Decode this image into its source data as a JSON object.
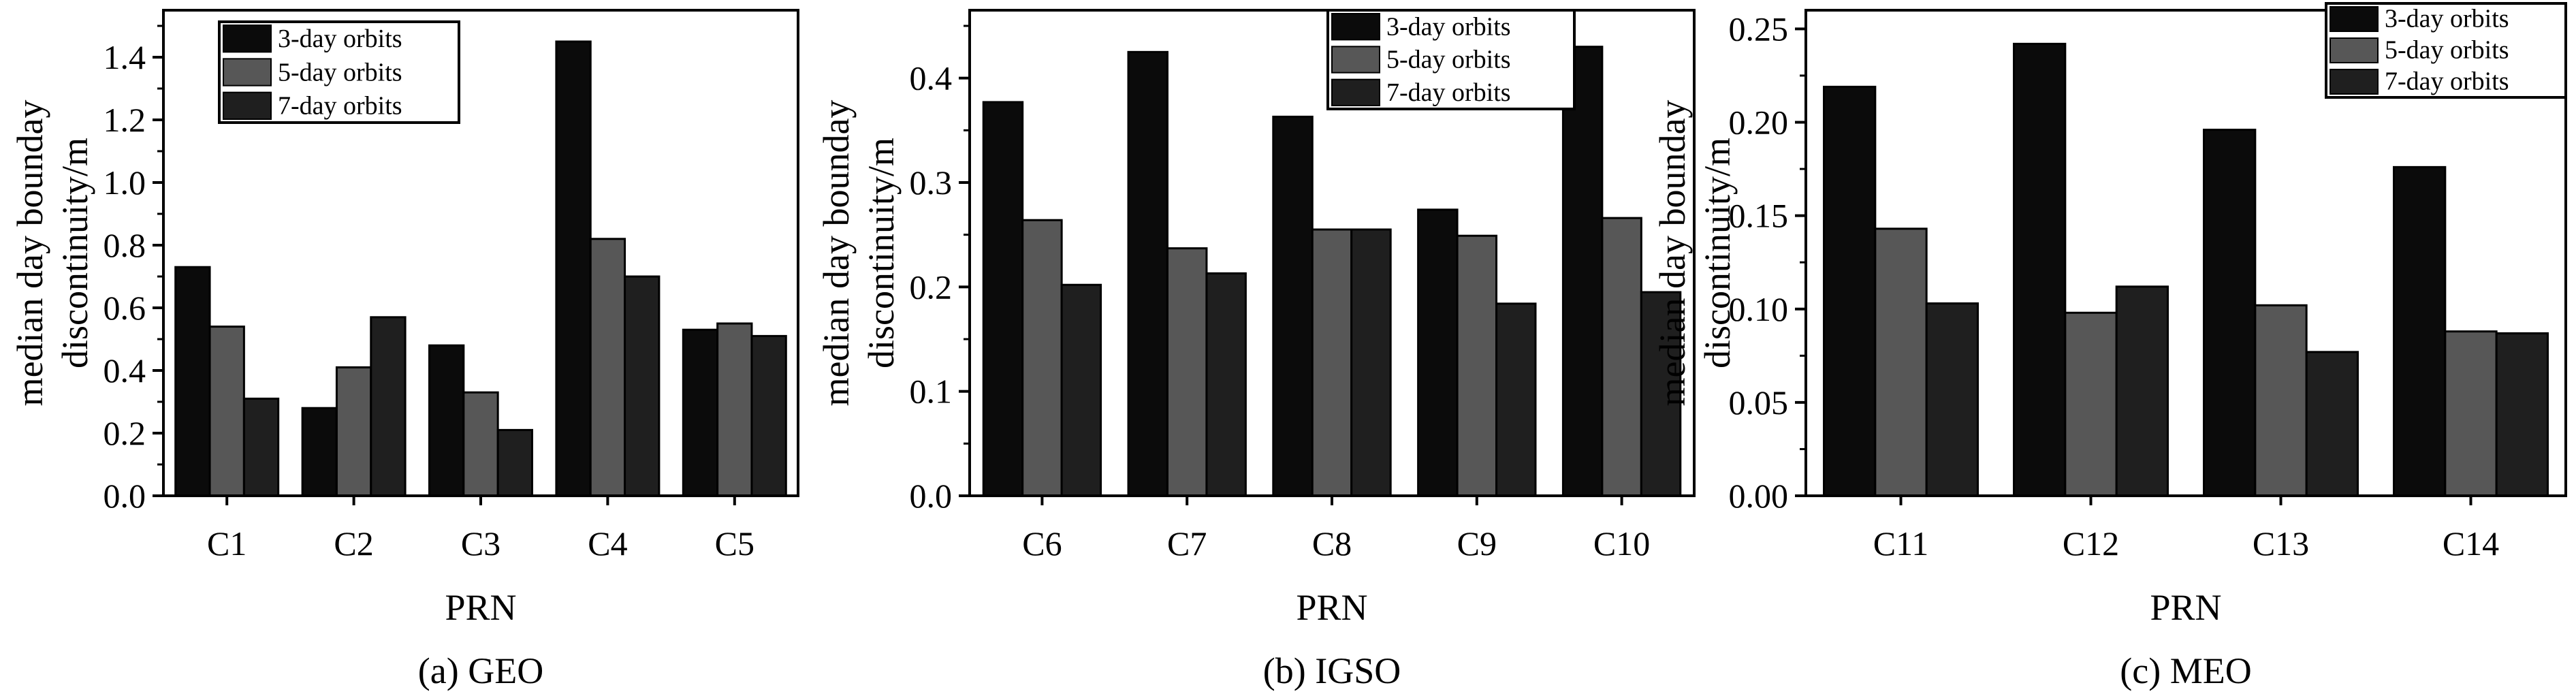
{
  "chart_data": [
    {
      "type": "bar",
      "caption": "(a) GEO",
      "xlabel": "PRN",
      "ylabel": [
        "median day bounday",
        "discontinuity/m"
      ],
      "categories": [
        "C1",
        "C2",
        "C3",
        "C4",
        "C5"
      ],
      "series": [
        {
          "name": "3-day orbits",
          "values": [
            0.73,
            0.28,
            0.48,
            1.45,
            0.53
          ]
        },
        {
          "name": "5-day orbits",
          "values": [
            0.54,
            0.41,
            0.33,
            0.82,
            0.55
          ]
        },
        {
          "name": "7-day orbits",
          "values": [
            0.31,
            0.57,
            0.21,
            0.7,
            0.51
          ]
        }
      ],
      "ylim": [
        0,
        1.55
      ],
      "yticks": [
        "0.0",
        "0.2",
        "0.4",
        "0.6",
        "0.8",
        "1.0",
        "1.2",
        "1.4"
      ],
      "grid": false,
      "legend": "top-left"
    },
    {
      "type": "bar",
      "caption": "(b) IGSO",
      "xlabel": "PRN",
      "ylabel": [
        "median day bounday",
        "discontinuity/m"
      ],
      "categories": [
        "C6",
        "C7",
        "C8",
        "C9",
        "C10"
      ],
      "series": [
        {
          "name": "3-day orbits",
          "values": [
            0.377,
            0.425,
            0.363,
            0.274,
            0.43
          ]
        },
        {
          "name": "5-day orbits",
          "values": [
            0.264,
            0.237,
            0.255,
            0.249,
            0.266
          ]
        },
        {
          "name": "7-day orbits",
          "values": [
            0.202,
            0.213,
            0.255,
            0.184,
            0.195
          ]
        }
      ],
      "ylim": [
        0,
        0.465
      ],
      "yticks": [
        "0.0",
        "0.1",
        "0.2",
        "0.3",
        "0.4"
      ],
      "grid": false,
      "legend": "top-right"
    },
    {
      "type": "bar",
      "caption": "(c) MEO",
      "xlabel": "PRN",
      "ylabel": [
        "median day bounday",
        "discontinuity/m"
      ],
      "categories": [
        "C11",
        "C12",
        "C13",
        "C14"
      ],
      "series": [
        {
          "name": "3-day orbits",
          "values": [
            0.219,
            0.242,
            0.196,
            0.176
          ]
        },
        {
          "name": "5-day orbits",
          "values": [
            0.143,
            0.098,
            0.102,
            0.088
          ]
        },
        {
          "name": "7-day orbits",
          "values": [
            0.103,
            0.112,
            0.077,
            0.087
          ]
        }
      ],
      "ylim": [
        0,
        0.26
      ],
      "yticks": [
        "0.00",
        "0.05",
        "0.10",
        "0.15",
        "0.20",
        "0.25"
      ],
      "grid": false,
      "legend": "top-right"
    }
  ],
  "colors": {
    "3-day orbits": "#0b0b0b",
    "5-day orbits": "#575757",
    "7-day orbits": "#1f1f1f"
  }
}
